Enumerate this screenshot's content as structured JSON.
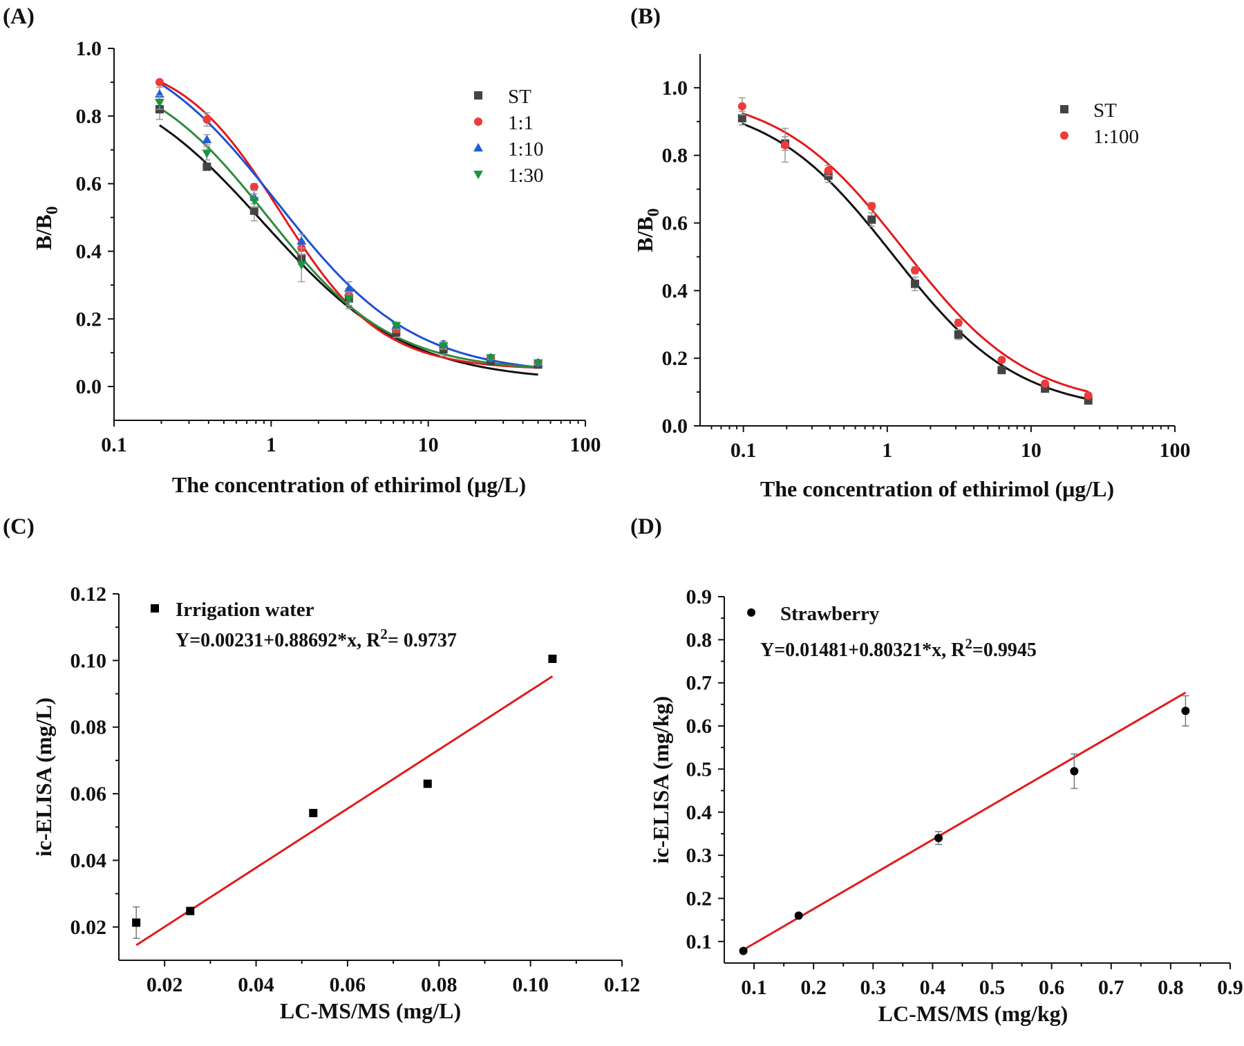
{
  "chart_data": [
    {
      "panel": "(A)",
      "type": "line",
      "xscale": "log",
      "xlim": [
        0.1,
        100
      ],
      "ylim": [
        -0.1,
        1.0
      ],
      "xticks": [
        0.1,
        1,
        10,
        100
      ],
      "xtick_labels": [
        "0.1",
        "1",
        "10",
        "100"
      ],
      "yticks": [
        0.0,
        0.2,
        0.4,
        0.6,
        0.8,
        1.0
      ],
      "ytick_labels": [
        "0.0",
        "0.2",
        "0.4",
        "0.6",
        "0.8",
        "1.0"
      ],
      "xlabel": "The concentration of ethirimol (μg/L)",
      "ylabel_main": "B/B",
      "ylabel_sub": "0",
      "legend": {
        "position": "top-right"
      },
      "x": [
        0.195,
        0.39,
        0.78,
        1.56,
        3.125,
        6.25,
        12.5,
        25,
        50
      ],
      "series": [
        {
          "name": "ST",
          "marker": "square",
          "color": "#444444",
          "fit_color": "#111111",
          "values": [
            0.82,
            0.65,
            0.52,
            0.38,
            0.26,
            0.16,
            0.11,
            0.075,
            0.065
          ],
          "errors": [
            0.03,
            0.01,
            0.03,
            0.02,
            0.03,
            0.015,
            0.02,
            0.005,
            0.005
          ],
          "fit": {
            "top": 0.95,
            "bottom": 0.015,
            "ic50": 0.9,
            "slope": 0.95
          }
        },
        {
          "name": "1:1",
          "marker": "circle",
          "color": "#ee3b3b",
          "fit_color": "#e31a1c",
          "values": [
            0.9,
            0.79,
            0.59,
            0.41,
            0.27,
            0.17,
            0.12,
            0.085,
            0.07
          ],
          "errors": [
            0.005,
            0.02,
            0.01,
            0.02,
            0.02,
            0.01,
            0.01,
            0.005,
            0.005
          ],
          "fit": {
            "top": 0.98,
            "bottom": 0.05,
            "ic50": 1.15,
            "slope": 1.35
          }
        },
        {
          "name": "1:10",
          "marker": "triangle-up",
          "color": "#1f5fd6",
          "fit_color": "#1f4fd1",
          "values": [
            0.865,
            0.73,
            0.56,
            0.43,
            0.29,
            0.18,
            0.125,
            0.085,
            0.07
          ],
          "errors": [
            0.02,
            0.015,
            0.02,
            0.02,
            0.02,
            0.01,
            0.01,
            0.005,
            0.005
          ],
          "fit": {
            "top": 1.05,
            "bottom": 0.035,
            "ic50": 1.1,
            "slope": 1.0
          }
        },
        {
          "name": "1:30",
          "marker": "triangle-down",
          "color": "#1a9641",
          "fit_color": "#2e8b3e",
          "values": [
            0.84,
            0.69,
            0.55,
            0.36,
            0.26,
            0.18,
            0.12,
            0.085,
            0.07
          ],
          "errors": [
            0.02,
            0.02,
            0.02,
            0.05,
            0.02,
            0.01,
            0.01,
            0.005,
            0.005
          ],
          "fit": {
            "top": 0.96,
            "bottom": 0.045,
            "ic50": 0.95,
            "slope": 1.1
          }
        }
      ]
    },
    {
      "panel": "(B)",
      "type": "line",
      "xscale": "log",
      "xlim": [
        0.05,
        100
      ],
      "ylim": [
        0.0,
        1.1
      ],
      "xticks": [
        0.1,
        1,
        10,
        100
      ],
      "xtick_labels": [
        "0.1",
        "1",
        "10",
        "100"
      ],
      "yticks": [
        0.0,
        0.2,
        0.4,
        0.6,
        0.8,
        1.0
      ],
      "ytick_labels": [
        "0.0",
        "0.2",
        "0.4",
        "0.6",
        "0.8",
        "1.0"
      ],
      "xlabel": "The concentration of ethirimol (μg/L)",
      "ylabel_main": "B/B",
      "ylabel_sub": "0",
      "legend": {
        "position": "top-right"
      },
      "x": [
        0.098,
        0.195,
        0.39,
        0.78,
        1.56,
        3.125,
        6.25,
        12.5,
        25
      ],
      "series": [
        {
          "name": "ST",
          "marker": "square",
          "color": "#444444",
          "fit_color": "#111111",
          "values": [
            0.91,
            0.835,
            0.74,
            0.61,
            0.42,
            0.27,
            0.165,
            0.11,
            0.075
          ],
          "errors": [
            0.02,
            0.02,
            0.02,
            0.02,
            0.02,
            0.015,
            0.01,
            0.005,
            0.005
          ],
          "fit": {
            "top": 0.97,
            "bottom": 0.04,
            "ic50": 1.1,
            "slope": 1.0
          }
        },
        {
          "name": "1:100",
          "marker": "circle",
          "color": "#ee3b3b",
          "fit_color": "#e31a1c",
          "values": [
            0.945,
            0.83,
            0.755,
            0.65,
            0.46,
            0.305,
            0.195,
            0.125,
            0.09
          ],
          "errors": [
            0.025,
            0.05,
            0.015,
            0.01,
            0.01,
            0.01,
            0.005,
            0.005,
            0.005
          ],
          "fit": {
            "top": 0.99,
            "bottom": 0.055,
            "ic50": 1.3,
            "slope": 1.0
          }
        }
      ]
    },
    {
      "panel": "(C)",
      "type": "scatter",
      "xlim": [
        0.01,
        0.12
      ],
      "ylim": [
        0.01,
        0.12
      ],
      "xticks": [
        0.02,
        0.04,
        0.06,
        0.08,
        0.1,
        0.12
      ],
      "xtick_labels": [
        "0.02",
        "0.04",
        "0.06",
        "0.08",
        "0.10",
        "0.12"
      ],
      "yticks": [
        0.02,
        0.04,
        0.06,
        0.08,
        0.1,
        0.12
      ],
      "ytick_labels": [
        "0.02",
        "0.04",
        "0.06",
        "0.08",
        "0.10",
        "0.12"
      ],
      "xlabel": "LC-MS/MS (mg/L)",
      "ylabel": "ic-ELISA (mg/L)",
      "legend": {
        "position": "top-left",
        "label": "Irrigation water",
        "marker": "square"
      },
      "equation_main": "Y=0.00231+0.88692*x, R",
      "equation_sup": "2",
      "equation_tail": "= 0.9737",
      "x": [
        0.0138,
        0.0256,
        0.0525,
        0.0775,
        0.1048
      ],
      "values": [
        0.0213,
        0.0248,
        0.0542,
        0.063,
        0.1005
      ],
      "errors": [
        0.0047,
        0.0006,
        0.0006,
        0.0006,
        0.0006
      ],
      "fit": {
        "intercept": 0.00231,
        "slope": 0.88692,
        "x_range": [
          0.0138,
          0.1048
        ]
      },
      "marker_color": "#000000",
      "fit_color": "#e31a1c"
    },
    {
      "panel": "(D)",
      "type": "scatter",
      "xlim": [
        0.05,
        0.9
      ],
      "ylim": [
        0.05,
        0.9
      ],
      "xticks": [
        0.1,
        0.2,
        0.3,
        0.4,
        0.5,
        0.6,
        0.7,
        0.8,
        0.9
      ],
      "xtick_labels": [
        "0.1",
        "0.2",
        "0.3",
        "0.4",
        "0.5",
        "0.6",
        "0.7",
        "0.8",
        "0.9"
      ],
      "yticks": [
        0.1,
        0.2,
        0.3,
        0.4,
        0.5,
        0.6,
        0.7,
        0.8,
        0.9
      ],
      "ytick_labels": [
        "0.1",
        "0.2",
        "0.3",
        "0.4",
        "0.5",
        "0.6",
        "0.7",
        "0.8",
        "0.9"
      ],
      "xlabel": "LC-MS/MS (mg/kg)",
      "ylabel": "ic-ELISA (mg/kg)",
      "legend": {
        "position": "top-left",
        "label": "Strawberry",
        "marker": "circle"
      },
      "equation_main": "Y=0.01481+0.80321*x, R",
      "equation_sup": "2",
      "equation_tail": "=0.9945",
      "x": [
        0.082,
        0.175,
        0.41,
        0.638,
        0.825
      ],
      "values": [
        0.078,
        0.16,
        0.34,
        0.495,
        0.635
      ],
      "errors": [
        0.005,
        0.005,
        0.015,
        0.04,
        0.035
      ],
      "fit": {
        "intercept": 0.01481,
        "slope": 0.80321,
        "x_range": [
          0.082,
          0.825
        ]
      },
      "marker_color": "#000000",
      "fit_color": "#e31a1c"
    }
  ]
}
